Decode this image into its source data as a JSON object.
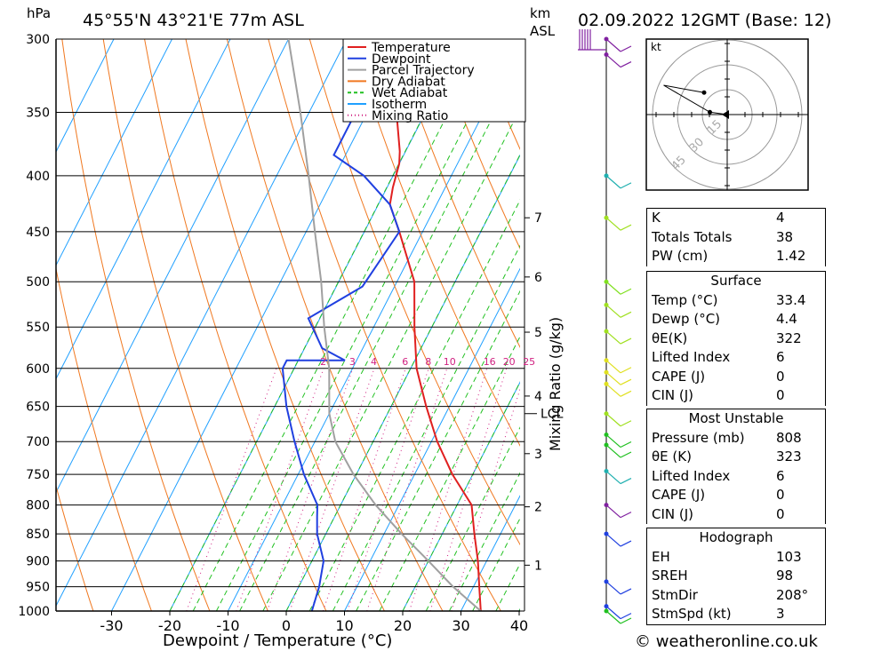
{
  "header": {
    "unit_left": "hPa",
    "location": "45°55'N  43°21'E  77m  ASL",
    "unit_right_1": "km",
    "unit_right_2": "ASL",
    "datetime": "02.09.2022  12GMT  (Base: 12)"
  },
  "footer": {
    "credit": "© weatheronline.co.uk"
  },
  "chart_data": {
    "type": "line",
    "title": "",
    "xlabel": "Dewpoint / Temperature (°C)",
    "ylabel": "hPa",
    "mixing_ratio_label": "Mixing Ratio (g/kg)",
    "xlim": [
      -40,
      40
    ],
    "ylim": [
      1000,
      300
    ],
    "x_ticks": [
      -30,
      -20,
      -10,
      0,
      10,
      20,
      30,
      40
    ],
    "pressure_levels": [
      300,
      350,
      400,
      450,
      500,
      550,
      600,
      650,
      700,
      750,
      800,
      850,
      900,
      950,
      1000
    ],
    "km_ticks": [
      {
        "label": "1",
        "p": 908
      },
      {
        "label": "2",
        "p": 803
      },
      {
        "label": "3",
        "p": 718
      },
      {
        "label": "4",
        "p": 636
      },
      {
        "label": "5",
        "p": 556
      },
      {
        "label": "6",
        "p": 495
      },
      {
        "label": "7",
        "p": 437
      }
    ],
    "lcl": {
      "label": "LCL",
      "p": 660
    },
    "mixing_ratio_values": [
      "2",
      "3",
      "4",
      "6",
      "8",
      "10",
      "16",
      "20",
      "25"
    ],
    "legend": [
      "Temperature",
      "Dewpoint",
      "Parcel Trajectory",
      "Dry Adiabat",
      "Wet Adiabat",
      "Isotherm",
      "Mixing Ratio"
    ],
    "legend_position": "top-right",
    "series": [
      {
        "name": "Temperature",
        "color": "#e02020",
        "points": [
          [
            1000,
            33.4
          ],
          [
            950,
            31
          ],
          [
            900,
            28.5
          ],
          [
            850,
            25.5
          ],
          [
            800,
            22.5
          ],
          [
            750,
            16.5
          ],
          [
            700,
            11
          ],
          [
            650,
            6
          ],
          [
            600,
            1
          ],
          [
            550,
            -3
          ],
          [
            500,
            -7
          ],
          [
            450,
            -14
          ],
          [
            425,
            -18
          ],
          [
            410,
            -19
          ],
          [
            390,
            -20
          ],
          [
            380,
            -21
          ],
          [
            350,
            -25
          ],
          [
            300,
            -31
          ]
        ]
      },
      {
        "name": "Dewpoint",
        "color": "#2040e0",
        "points": [
          [
            1000,
            4.4
          ],
          [
            950,
            3.5
          ],
          [
            900,
            2
          ],
          [
            850,
            -1.5
          ],
          [
            820,
            -3
          ],
          [
            800,
            -4
          ],
          [
            750,
            -9
          ],
          [
            700,
            -13.5
          ],
          [
            650,
            -18
          ],
          [
            600,
            -22
          ],
          [
            590,
            -22
          ],
          [
            590,
            -12
          ],
          [
            575,
            -17
          ],
          [
            540,
            -22
          ],
          [
            505,
            -15.5
          ],
          [
            450,
            -14
          ],
          [
            425,
            -18
          ],
          [
            400,
            -25
          ],
          [
            383,
            -32
          ],
          [
            350,
            -32
          ],
          [
            300,
            -32
          ]
        ]
      },
      {
        "name": "Parcel Trajectory",
        "color": "#a0a0a0",
        "points": [
          [
            1000,
            33.4
          ],
          [
            950,
            26.5
          ],
          [
            900,
            20
          ],
          [
            850,
            13
          ],
          [
            800,
            6
          ],
          [
            750,
            -0.5
          ],
          [
            700,
            -6.5
          ],
          [
            660,
            -10
          ],
          [
            600,
            -14
          ],
          [
            550,
            -18.5
          ],
          [
            500,
            -23
          ],
          [
            450,
            -28.5
          ],
          [
            400,
            -34.5
          ],
          [
            350,
            -41.5
          ],
          [
            300,
            -50
          ]
        ]
      }
    ],
    "wind_barbs_color": "#8020a0",
    "hodograph": {
      "unit": "kt",
      "rings": [
        "15",
        "30",
        "45"
      ],
      "points": [
        [
          0,
          0
        ],
        [
          -3,
          0.5
        ],
        [
          -11,
          6
        ],
        [
          -4,
          4.5
        ]
      ]
    }
  },
  "indices": [
    {
      "k": "K",
      "v": "4"
    },
    {
      "k": "Totals Totals",
      "v": "38"
    },
    {
      "k": "PW (cm)",
      "v": "1.42"
    }
  ],
  "surface": {
    "title": "Surface",
    "rows": [
      {
        "k": "Temp (°C)",
        "v": "33.4"
      },
      {
        "k": "Dewp (°C)",
        "v": "4.4"
      },
      {
        "k": "θE(K)",
        "v": "322"
      },
      {
        "k": "Lifted Index",
        "v": "6"
      },
      {
        "k": "CAPE (J)",
        "v": "0"
      },
      {
        "k": "CIN (J)",
        "v": "0"
      }
    ]
  },
  "most_unstable": {
    "title": "Most Unstable",
    "rows": [
      {
        "k": "Pressure (mb)",
        "v": "808"
      },
      {
        "k": "θE (K)",
        "v": "323"
      },
      {
        "k": "Lifted Index",
        "v": "6"
      },
      {
        "k": "CAPE (J)",
        "v": "0"
      },
      {
        "k": "CIN (J)",
        "v": "0"
      }
    ]
  },
  "hodograph_table": {
    "title": "Hodograph",
    "rows": [
      {
        "k": "EH",
        "v": "103"
      },
      {
        "k": "SREH",
        "v": "98"
      },
      {
        "k": "StmDir",
        "v": "208°"
      },
      {
        "k": "StmSpd (kt)",
        "v": "3"
      }
    ]
  }
}
